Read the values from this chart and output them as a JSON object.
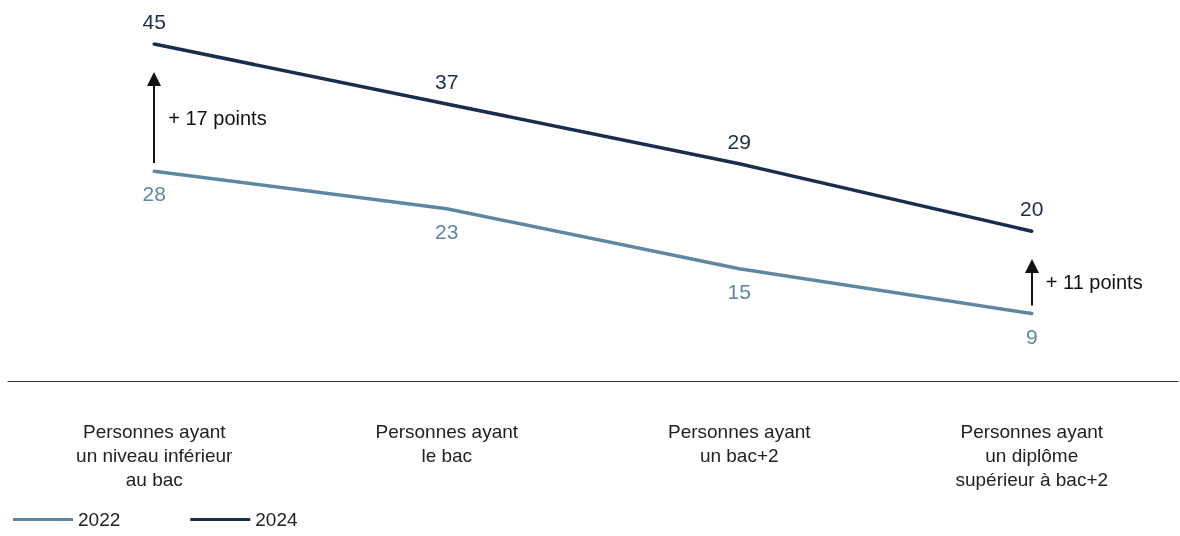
{
  "chart_data": {
    "type": "line",
    "categories": [
      "Personnes ayant\nun niveau inférieur\nau bac",
      "Personnes ayant\nle bac",
      "Personnes ayant\nun bac+2",
      "Personnes ayant\nun diplôme\nsupérieur à bac+2"
    ],
    "series": [
      {
        "name": "2022",
        "color": "#5e87a3",
        "values": [
          28,
          23,
          15,
          9
        ]
      },
      {
        "name": "2024",
        "color": "#1b2d4c",
        "values": [
          45,
          37,
          29,
          20
        ]
      }
    ],
    "annotations": [
      "+ 17 points",
      "+ 11 points"
    ],
    "data_labels": true,
    "grid": false,
    "legend": "bottom left",
    "marker": "none",
    "line_style": "solid"
  }
}
